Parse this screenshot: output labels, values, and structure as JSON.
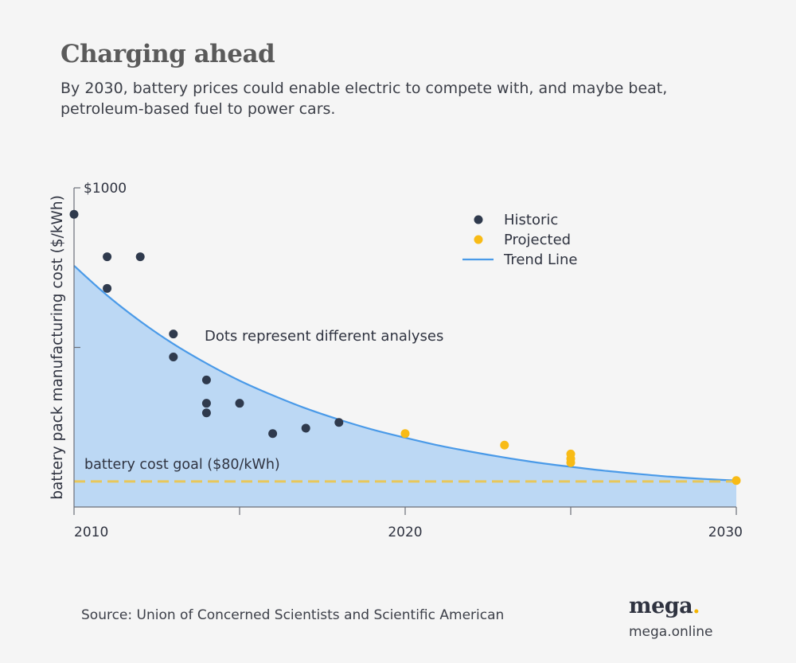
{
  "header": {
    "title": "Charging ahead",
    "subtitle": "By 2030, battery prices could enable electric to compete with, and maybe beat, petroleum-based fuel to power cars."
  },
  "footer": {
    "source": "Source: Union of Concerned Scientists and Scientific American",
    "brand_name": "mega",
    "brand_dot": ".",
    "brand_url": "mega.online"
  },
  "colors": {
    "historic": "#2f3a4d",
    "projected": "#f8bb16",
    "trend": "#4a9ae8",
    "fill": "#bcd8f4",
    "goal": "#e8c75a",
    "axis": "#6b6f78"
  },
  "chart_data": {
    "type": "scatter",
    "ylabel": "battery pack manufacturing cost ($/kWh)",
    "xlim": [
      2010,
      2030
    ],
    "ylim": [
      0,
      1000
    ],
    "x_ticks": [
      {
        "value": 2010,
        "label": "2010"
      },
      {
        "value": 2015,
        "label": ""
      },
      {
        "value": 2020,
        "label": "2020"
      },
      {
        "value": 2025,
        "label": ""
      },
      {
        "value": 2030,
        "label": "2030"
      }
    ],
    "y_ticks": [
      {
        "value": 1000,
        "label": "$1000"
      },
      {
        "value": 500,
        "label": ""
      }
    ],
    "series": [
      {
        "name": "Historic",
        "color": "#2f3a4d",
        "points": [
          [
            2010,
            917
          ],
          [
            2011,
            784
          ],
          [
            2011,
            685
          ],
          [
            2012,
            784
          ],
          [
            2013,
            542
          ],
          [
            2013,
            470
          ],
          [
            2014,
            398
          ],
          [
            2014,
            325
          ],
          [
            2014,
            295
          ],
          [
            2015,
            325
          ],
          [
            2016,
            230
          ],
          [
            2017,
            247
          ],
          [
            2018,
            265
          ]
        ]
      },
      {
        "name": "Projected",
        "color": "#f8bb16",
        "points": [
          [
            2020,
            230
          ],
          [
            2023,
            194
          ],
          [
            2025,
            166
          ],
          [
            2025,
            151
          ],
          [
            2025,
            139
          ],
          [
            2030,
            83
          ]
        ]
      }
    ],
    "trend": {
      "name": "Trend Line",
      "points": [
        [
          2010,
          756
        ],
        [
          2011,
          663
        ],
        [
          2012,
          582
        ],
        [
          2013,
          511
        ],
        [
          2014,
          450
        ],
        [
          2015,
          396
        ],
        [
          2016,
          350
        ],
        [
          2017,
          309
        ],
        [
          2018,
          274
        ],
        [
          2019,
          243
        ],
        [
          2020,
          217
        ],
        [
          2021,
          193
        ],
        [
          2022,
          173
        ],
        [
          2023,
          155
        ],
        [
          2024,
          139
        ],
        [
          2025,
          126
        ],
        [
          2026,
          114
        ],
        [
          2027,
          104
        ],
        [
          2028,
          95
        ],
        [
          2029,
          88
        ],
        [
          2030,
          83
        ]
      ]
    },
    "goal": {
      "value": 80,
      "label": "battery cost goal  ($80/kWh)"
    },
    "annotation": "Dots represent different analyses",
    "legend": {
      "position": "top-right",
      "items": [
        {
          "label": "Historic",
          "type": "dot",
          "color": "#2f3a4d"
        },
        {
          "label": "Projected",
          "type": "dot",
          "color": "#f8bb16"
        },
        {
          "label": "Trend Line",
          "type": "line",
          "color": "#4a9ae8"
        }
      ]
    }
  }
}
